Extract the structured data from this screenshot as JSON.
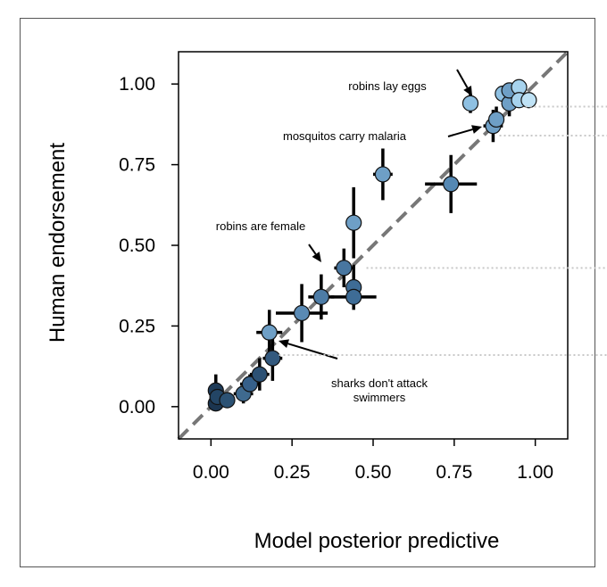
{
  "chart_data": {
    "type": "scatter",
    "xlabel": "Model posterior predictive",
    "ylabel": "Human endorsement",
    "xlim": [
      -0.1,
      1.1
    ],
    "ylim": [
      -0.1,
      1.1
    ],
    "x_ticks": [
      "0.00",
      "0.25",
      "0.50",
      "0.75",
      "1.00"
    ],
    "y_ticks": [
      "0.00",
      "0.25",
      "0.50",
      "0.75",
      "1.00"
    ],
    "x_tick_values": [
      0,
      0.25,
      0.5,
      0.75,
      1.0
    ],
    "y_tick_values": [
      0,
      0.25,
      0.5,
      0.75,
      1.0
    ],
    "reference_line": "y = x (dashed)",
    "grid": false,
    "legend": "none",
    "points": [
      {
        "x": 0.015,
        "y": 0.01,
        "xerr": 0.01,
        "yerr": 0.02,
        "color": "#1b3550"
      },
      {
        "x": 0.015,
        "y": 0.05,
        "xerr": 0.01,
        "yerr": 0.05,
        "color": "#1e3b58"
      },
      {
        "x": 0.02,
        "y": 0.03,
        "xerr": 0.01,
        "yerr": 0.03,
        "color": "#234565"
      },
      {
        "x": 0.05,
        "y": 0.02,
        "xerr": 0.02,
        "yerr": 0.02,
        "color": "#2c5274"
      },
      {
        "x": 0.1,
        "y": 0.04,
        "xerr": 0.03,
        "yerr": 0.03,
        "color": "#3f6a8f"
      },
      {
        "x": 0.12,
        "y": 0.07,
        "xerr": 0.03,
        "yerr": 0.03,
        "color": "#36608a"
      },
      {
        "x": 0.15,
        "y": 0.1,
        "xerr": 0.03,
        "yerr": 0.05,
        "color": "#2c5174"
      },
      {
        "x": 0.18,
        "y": 0.23,
        "xerr": 0.04,
        "yerr": 0.07,
        "color": "#6e9fc6"
      },
      {
        "x": 0.19,
        "y": 0.15,
        "xerr": 0.03,
        "yerr": 0.07,
        "color": "#33597e"
      },
      {
        "x": 0.28,
        "y": 0.29,
        "xerr": 0.08,
        "yerr": 0.09,
        "color": "#5a8ab4"
      },
      {
        "x": 0.34,
        "y": 0.34,
        "xerr": 0.04,
        "yerr": 0.07,
        "color": "#4d7ca6"
      },
      {
        "x": 0.41,
        "y": 0.43,
        "xerr": 0.03,
        "yerr": 0.06,
        "color": "#4876a0"
      },
      {
        "x": 0.44,
        "y": 0.37,
        "xerr": 0.02,
        "yerr": 0.07,
        "color": "#3e6c96"
      },
      {
        "x": 0.44,
        "y": 0.34,
        "xerr": 0.07,
        "yerr": 0.02,
        "color": "#3e6c96"
      },
      {
        "x": 0.44,
        "y": 0.57,
        "xerr": 0.02,
        "yerr": 0.11,
        "color": "#6e9fc6"
      },
      {
        "x": 0.53,
        "y": 0.72,
        "xerr": 0.03,
        "yerr": 0.08,
        "color": "#6e9fc6"
      },
      {
        "x": 0.74,
        "y": 0.69,
        "xerr": 0.08,
        "yerr": 0.09,
        "color": "#5588b3"
      },
      {
        "x": 0.8,
        "y": 0.94,
        "xerr": 0.02,
        "yerr": 0.03,
        "color": "#8ec0e2"
      },
      {
        "x": 0.87,
        "y": 0.87,
        "xerr": 0.03,
        "yerr": 0.05,
        "color": "#6e9fc6"
      },
      {
        "x": 0.88,
        "y": 0.89,
        "xerr": 0.02,
        "yerr": 0.04,
        "color": "#6e9fc6"
      },
      {
        "x": 0.9,
        "y": 0.97,
        "xerr": 0.02,
        "yerr": 0.02,
        "color": "#8ec0e2"
      },
      {
        "x": 0.92,
        "y": 0.94,
        "xerr": 0.02,
        "yerr": 0.04,
        "color": "#6e9fc6"
      },
      {
        "x": 0.92,
        "y": 0.98,
        "xerr": 0.02,
        "yerr": 0.02,
        "color": "#6e9fc6"
      },
      {
        "x": 0.95,
        "y": 0.99,
        "xerr": 0.02,
        "yerr": 0.02,
        "color": "#a7d3ee"
      },
      {
        "x": 0.95,
        "y": 0.95,
        "xerr": 0.02,
        "yerr": 0.02,
        "color": "#a7d3ee"
      },
      {
        "x": 0.98,
        "y": 0.95,
        "xerr": 0.02,
        "yerr": 0.02,
        "color": "#bfe2f5"
      }
    ],
    "annotations": [
      {
        "lines": [
          "robins lay eggs"
        ],
        "target": [
          0.8,
          0.94
        ]
      },
      {
        "lines": [
          "mosquitos carry malaria"
        ],
        "target": [
          0.87,
          0.87
        ]
      },
      {
        "lines": [
          "robins are female"
        ],
        "target": [
          0.34,
          0.44
        ]
      },
      {
        "lines": [
          "sharks don't attack",
          "swimmers"
        ],
        "target": [
          0.18,
          0.2
        ]
      }
    ]
  }
}
